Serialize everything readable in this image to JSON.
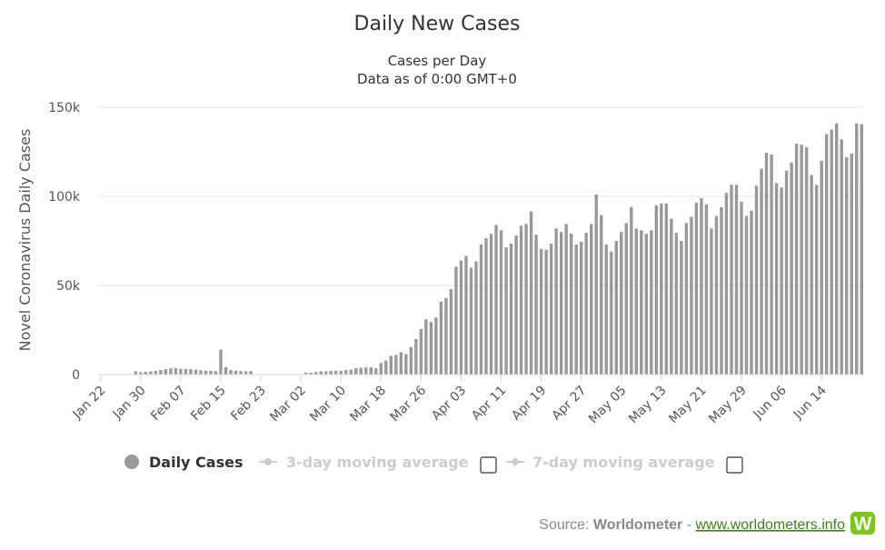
{
  "chart_data": {
    "type": "bar",
    "title": "Daily New Cases",
    "subtitle": [
      "Cases per Day",
      "Data as of 0:00 GMT+0"
    ],
    "ylabel": "Novel Coronavirus Daily Cases",
    "xlabel": "",
    "ylim": [
      0,
      150000
    ],
    "yticks": [
      {
        "value": 0,
        "label": "0"
      },
      {
        "value": 50000,
        "label": "50k"
      },
      {
        "value": 100000,
        "label": "100k"
      },
      {
        "value": 150000,
        "label": "150k"
      }
    ],
    "x_tick_labels": [
      "Jan 22",
      "Jan 30",
      "Feb 07",
      "Feb 15",
      "Feb 23",
      "Mar 02",
      "Mar 10",
      "Mar 18",
      "Mar 26",
      "Apr 03",
      "Apr 11",
      "Apr 19",
      "Apr 27",
      "May 05",
      "May 13",
      "May 21",
      "May 29",
      "Jun 06",
      "Jun 14"
    ],
    "x_tick_every": 8,
    "start_date": "Jan 22",
    "series": [
      {
        "name": "Daily Cases",
        "color": "#999999",
        "values": [
          0,
          0,
          0,
          0,
          0,
          0,
          0,
          1800,
          1200,
          1500,
          1700,
          2000,
          2500,
          3000,
          3400,
          3700,
          3200,
          3100,
          3100,
          2700,
          2300,
          2200,
          2100,
          1900,
          14000,
          4200,
          2500,
          2200,
          2000,
          1800,
          1900,
          0,
          0,
          0,
          0,
          0,
          0,
          0,
          0,
          0,
          0,
          1200,
          1000,
          1400,
          1800,
          1800,
          2000,
          2200,
          2100,
          2500,
          2700,
          3600,
          3800,
          4000,
          4000,
          3500,
          6500,
          7800,
          10500,
          11000,
          12500,
          11500,
          15500,
          20000,
          25500,
          31000,
          29500,
          32000,
          41000,
          43000,
          48000,
          60500,
          64000,
          66500,
          60000,
          63500,
          73000,
          76500,
          79000,
          84000,
          81000,
          71500,
          73500,
          78000,
          83500,
          84500,
          91500,
          78500,
          70500,
          70000,
          73500,
          82000,
          80000,
          84500,
          79000,
          73000,
          74500,
          79500,
          84500,
          101000,
          89500,
          73000,
          69000,
          75000,
          80000,
          85000,
          94000,
          82000,
          81000,
          79000,
          81000,
          95000,
          96000,
          96000,
          87500,
          79500,
          75000,
          85000,
          88500,
          96500,
          99000,
          95500,
          82000,
          89000,
          94000,
          102000,
          106500,
          106500,
          97000,
          89000,
          92000,
          106000,
          115500,
          124500,
          123500,
          107500,
          105000,
          114500,
          119000,
          129500,
          129000,
          127500,
          112000,
          106500,
          120000,
          135000,
          137500,
          141000,
          132000,
          122000,
          124000,
          141000,
          140500
        ]
      },
      {
        "name": "3-day moving average",
        "color": "#cccccc",
        "visible": false
      },
      {
        "name": "7-day moving average",
        "color": "#cccccc",
        "visible": false
      }
    ],
    "grid": true,
    "legend": "bottom-center"
  },
  "legend": {
    "items": [
      {
        "label": "Daily Cases",
        "active": true
      },
      {
        "label": "3-day moving average",
        "active": false
      },
      {
        "label": "7-day moving average",
        "active": false
      }
    ]
  },
  "source": {
    "prefix": "Source: ",
    "brand": "Worldometer",
    "sep": " - ",
    "link": "www.worldometers.info",
    "logo_letter": "W"
  },
  "colors": {
    "bar": "#999999",
    "grid": "#e6e6e6",
    "legend_inactive": "#cccccc",
    "logo_green": "#7cc420",
    "link_green": "#3f7e1f"
  }
}
